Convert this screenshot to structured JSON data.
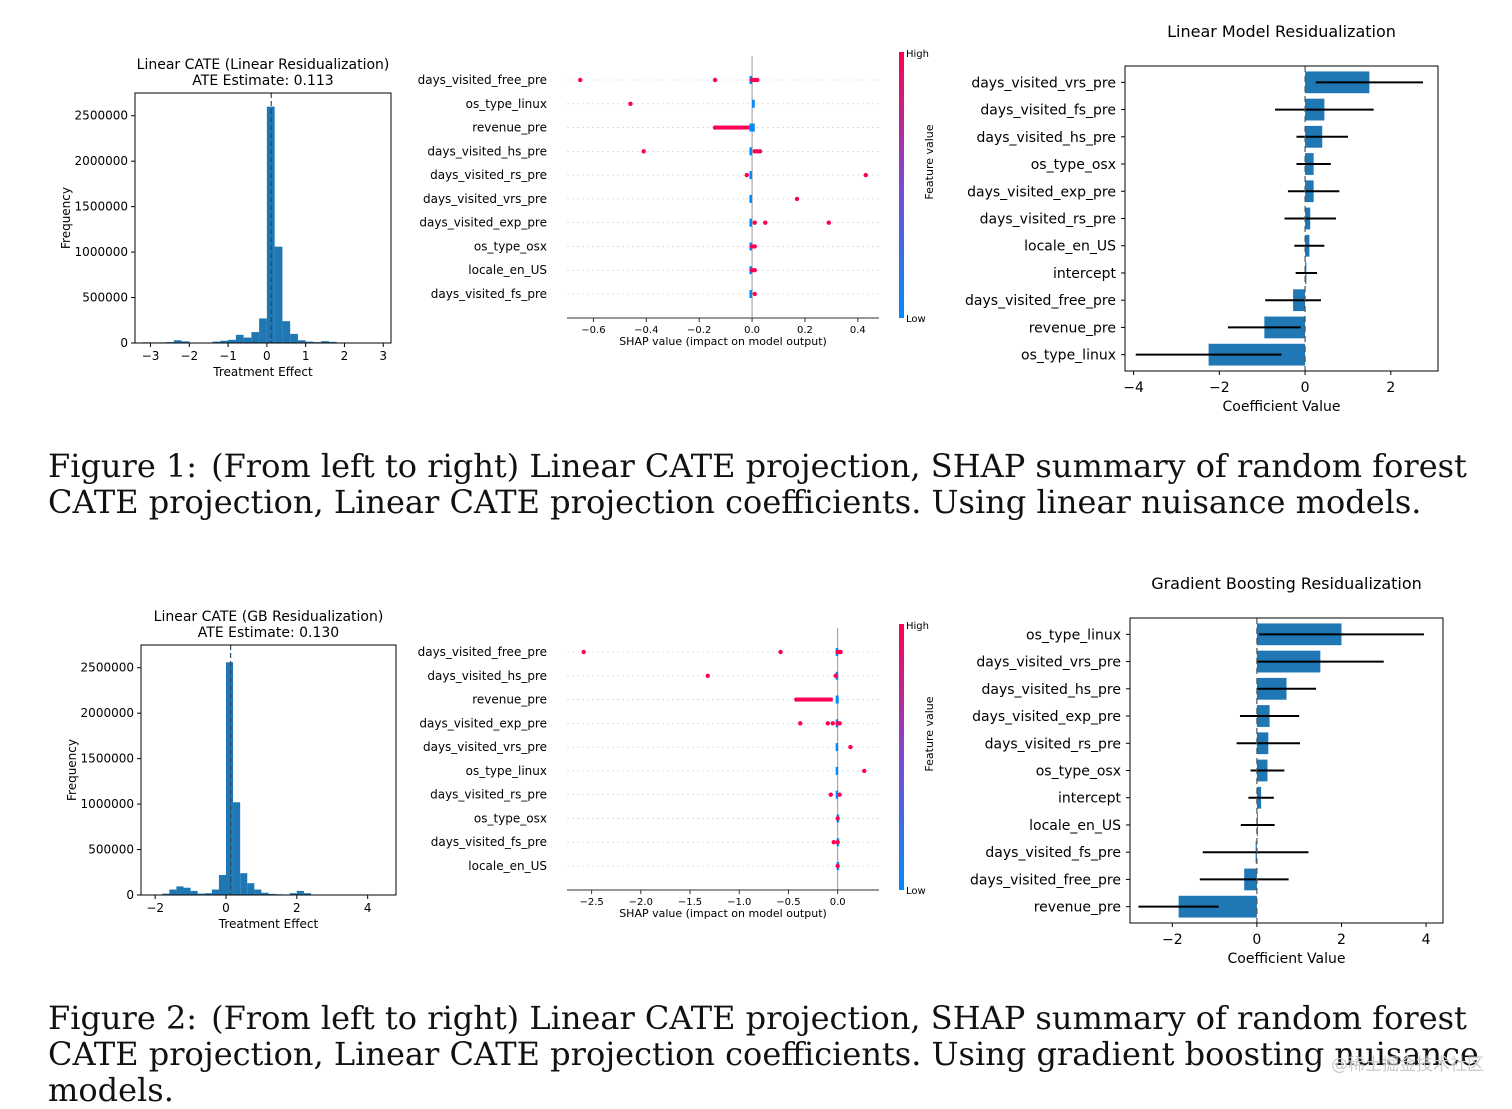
{
  "chart_data": [
    {
      "type": "bar",
      "kind": "histogram",
      "title": "Linear CATE (Linear Residualization)",
      "subtitle": "ATE Estimate: 0.113",
      "xlabel": "Treatment Effect",
      "ylabel": "Frequency",
      "xlim": [
        -3.4,
        3.2
      ],
      "ylim": [
        0,
        2750000
      ],
      "xticks": [
        -3,
        -2,
        -1,
        0,
        1,
        2,
        3
      ],
      "xtick_labels": [
        "−3",
        "−2",
        "−1",
        "0",
        "1",
        "2",
        "3"
      ],
      "yticks": [
        0,
        500000,
        1000000,
        1500000,
        2000000,
        2500000
      ],
      "ytick_labels": [
        "0",
        "500000",
        "1000000",
        "1500000",
        "2000000",
        "2500000"
      ],
      "bin_width": 0.2,
      "bins": [
        {
          "x": -3.3,
          "y": 5000
        },
        {
          "x": -3.1,
          "y": 8000
        },
        {
          "x": -2.9,
          "y": 6000
        },
        {
          "x": -2.7,
          "y": 7000
        },
        {
          "x": -2.5,
          "y": 10000
        },
        {
          "x": -2.3,
          "y": 30000
        },
        {
          "x": -2.1,
          "y": 18000
        },
        {
          "x": -1.9,
          "y": 5000
        },
        {
          "x": -1.7,
          "y": 4000
        },
        {
          "x": -1.5,
          "y": 5000
        },
        {
          "x": -1.3,
          "y": 15000
        },
        {
          "x": -1.1,
          "y": 25000
        },
        {
          "x": -0.9,
          "y": 35000
        },
        {
          "x": -0.7,
          "y": 90000
        },
        {
          "x": -0.5,
          "y": 60000
        },
        {
          "x": -0.3,
          "y": 120000
        },
        {
          "x": -0.1,
          "y": 270000
        },
        {
          "x": 0.1,
          "y": 2600000
        },
        {
          "x": 0.3,
          "y": 1060000
        },
        {
          "x": 0.5,
          "y": 240000
        },
        {
          "x": 0.7,
          "y": 100000
        },
        {
          "x": 0.9,
          "y": 30000
        },
        {
          "x": 1.1,
          "y": 15000
        },
        {
          "x": 1.3,
          "y": 10000
        },
        {
          "x": 1.5,
          "y": 20000
        },
        {
          "x": 1.7,
          "y": 12000
        },
        {
          "x": 1.9,
          "y": 5000
        },
        {
          "x": 2.1,
          "y": 3000
        }
      ],
      "mean_line": 0.113
    },
    {
      "type": "scatter",
      "kind": "shap_summary",
      "xlabel": "SHAP value (impact on model output)",
      "xlim": [
        -0.7,
        0.48
      ],
      "xticks": [
        -0.6,
        -0.4,
        -0.2,
        0.0,
        0.2,
        0.4
      ],
      "xtick_labels": [
        "−0.6",
        "−0.4",
        "−0.2",
        "0.0",
        "0.2",
        "0.4"
      ],
      "colorbar": {
        "label": "Feature value",
        "high": "High",
        "low": "Low"
      },
      "features": [
        {
          "name": "days_visited_free_pre",
          "low_range": [
            -0.01,
            0.0
          ],
          "high_points": [
            -0.65,
            -0.14,
            0.0,
            0.01,
            0.02
          ]
        },
        {
          "name": "os_type_linux",
          "low_range": [
            0.0,
            0.01
          ],
          "high_points": [
            -0.46
          ]
        },
        {
          "name": "revenue_pre",
          "low_range": [
            -0.01,
            0.01
          ],
          "high_points": [
            -0.14
          ],
          "high_range": [
            -0.14,
            -0.01
          ]
        },
        {
          "name": "days_visited_hs_pre",
          "low_range": [
            -0.01,
            0.0
          ],
          "high_points": [
            -0.41,
            0.01,
            0.02,
            0.03
          ]
        },
        {
          "name": "days_visited_rs_pre",
          "low_range": [
            -0.01,
            0.0
          ],
          "high_points": [
            -0.02,
            0.43
          ]
        },
        {
          "name": "days_visited_vrs_pre",
          "low_range": [
            -0.01,
            0.0
          ],
          "high_points": [
            0.17
          ]
        },
        {
          "name": "days_visited_exp_pre",
          "low_range": [
            -0.01,
            0.0
          ],
          "high_points": [
            0.01,
            0.05,
            0.29
          ]
        },
        {
          "name": "os_type_osx",
          "low_range": [
            -0.01,
            0.0
          ],
          "high_points": [
            0.0,
            0.01
          ]
        },
        {
          "name": "locale_en_US",
          "low_range": [
            -0.01,
            0.0
          ],
          "high_points": [
            0.0,
            0.01
          ]
        },
        {
          "name": "days_visited_fs_pre",
          "low_range": [
            -0.01,
            0.0
          ],
          "high_points": [
            0.01
          ]
        }
      ]
    },
    {
      "type": "bar",
      "kind": "horizontal_coefficients",
      "title": "Linear Model Residualization",
      "xlabel": "Coefficient Value",
      "xlim": [
        -4.2,
        3.1
      ],
      "xticks": [
        -4,
        -2,
        0,
        2
      ],
      "xtick_labels": [
        "−4",
        "−2",
        "0",
        "2"
      ],
      "categories": [
        "days_visited_vrs_pre",
        "days_visited_fs_pre",
        "days_visited_hs_pre",
        "os_type_osx",
        "days_visited_exp_pre",
        "days_visited_rs_pre",
        "locale_en_US",
        "intercept",
        "days_visited_free_pre",
        "revenue_pre",
        "os_type_linux"
      ],
      "values": [
        1.5,
        0.45,
        0.4,
        0.2,
        0.2,
        0.12,
        0.1,
        0.03,
        -0.28,
        -0.95,
        -2.25
      ],
      "errors": [
        1.25,
        1.15,
        0.6,
        0.4,
        0.6,
        0.6,
        0.35,
        0.25,
        0.65,
        0.85,
        1.7
      ]
    },
    {
      "type": "bar",
      "kind": "histogram",
      "title": "Linear CATE (GB Residualization)",
      "subtitle": "ATE Estimate: 0.130",
      "xlabel": "Treatment Effect",
      "ylabel": "Frequency",
      "xlim": [
        -2.4,
        4.8
      ],
      "ylim": [
        0,
        2750000
      ],
      "xticks": [
        -2,
        0,
        2,
        4
      ],
      "xtick_labels": [
        "−2",
        "0",
        "2",
        "4"
      ],
      "yticks": [
        0,
        500000,
        1000000,
        1500000,
        2000000,
        2500000
      ],
      "ytick_labels": [
        "0",
        "500000",
        "1000000",
        "1500000",
        "2000000",
        "2500000"
      ],
      "bin_width": 0.2,
      "bins": [
        {
          "x": -1.9,
          "y": 5000
        },
        {
          "x": -1.7,
          "y": 15000
        },
        {
          "x": -1.5,
          "y": 60000
        },
        {
          "x": -1.3,
          "y": 95000
        },
        {
          "x": -1.1,
          "y": 80000
        },
        {
          "x": -0.9,
          "y": 45000
        },
        {
          "x": -0.7,
          "y": 15000
        },
        {
          "x": -0.5,
          "y": 20000
        },
        {
          "x": -0.3,
          "y": 60000
        },
        {
          "x": -0.1,
          "y": 220000
        },
        {
          "x": 0.1,
          "y": 2560000
        },
        {
          "x": 0.3,
          "y": 1020000
        },
        {
          "x": 0.5,
          "y": 240000
        },
        {
          "x": 0.7,
          "y": 130000
        },
        {
          "x": 0.9,
          "y": 60000
        },
        {
          "x": 1.1,
          "y": 25000
        },
        {
          "x": 1.3,
          "y": 12000
        },
        {
          "x": 1.5,
          "y": 8000
        },
        {
          "x": 1.7,
          "y": 6000
        },
        {
          "x": 1.9,
          "y": 20000
        },
        {
          "x": 2.1,
          "y": 45000
        },
        {
          "x": 2.3,
          "y": 20000
        },
        {
          "x": 2.5,
          "y": 5000
        }
      ],
      "mean_line": 0.13
    },
    {
      "type": "scatter",
      "kind": "shap_summary",
      "xlabel": "SHAP value (impact on model output)",
      "xlim": [
        -2.75,
        0.42
      ],
      "xticks": [
        -2.5,
        -2.0,
        -1.5,
        -1.0,
        -0.5,
        0.0
      ],
      "xtick_labels": [
        "−2.5",
        "−2.0",
        "−1.5",
        "−1.0",
        "−0.5",
        "0.0"
      ],
      "colorbar": {
        "label": "Feature value",
        "high": "High",
        "low": "Low"
      },
      "features": [
        {
          "name": "days_visited_free_pre",
          "low_range": [
            -0.02,
            0.0
          ],
          "high_points": [
            -2.58,
            -0.58,
            0.0,
            0.02,
            0.03
          ]
        },
        {
          "name": "days_visited_hs_pre",
          "low_range": [
            -0.02,
            0.0
          ],
          "high_points": [
            -1.32,
            -0.02
          ]
        },
        {
          "name": "revenue_pre",
          "low_range": [
            -0.02,
            0.01
          ],
          "high_points": [
            -0.42
          ],
          "high_range": [
            -0.42,
            -0.05
          ]
        },
        {
          "name": "days_visited_exp_pre",
          "low_range": [
            -0.02,
            0.0
          ],
          "high_points": [
            -0.38,
            -0.1,
            -0.05,
            0.0,
            0.02
          ]
        },
        {
          "name": "days_visited_vrs_pre",
          "low_range": [
            -0.02,
            0.0
          ],
          "high_points": [
            0.13
          ]
        },
        {
          "name": "os_type_linux",
          "low_range": [
            -0.02,
            0.0
          ],
          "high_points": [
            0.27
          ]
        },
        {
          "name": "days_visited_rs_pre",
          "low_range": [
            -0.02,
            0.0
          ],
          "high_points": [
            -0.07,
            0.02
          ]
        },
        {
          "name": "os_type_osx",
          "low_range": [
            -0.01,
            0.0
          ],
          "high_points": [
            0.0
          ]
        },
        {
          "name": "days_visited_fs_pre",
          "low_range": [
            -0.01,
            0.0
          ],
          "high_points": [
            -0.04,
            0.0
          ]
        },
        {
          "name": "locale_en_US",
          "low_range": [
            -0.01,
            0.0
          ],
          "high_points": [
            0.0
          ]
        }
      ]
    },
    {
      "type": "bar",
      "kind": "horizontal_coefficients",
      "title": "Gradient Boosting Residualization",
      "xlabel": "Coefficient Value",
      "xlim": [
        -3.0,
        4.4
      ],
      "xticks": [
        -2,
        0,
        2,
        4
      ],
      "xtick_labels": [
        "−2",
        "0",
        "2",
        "4"
      ],
      "categories": [
        "os_type_linux",
        "days_visited_vrs_pre",
        "days_visited_hs_pre",
        "days_visited_exp_pre",
        "days_visited_rs_pre",
        "os_type_osx",
        "intercept",
        "locale_en_US",
        "days_visited_fs_pre",
        "days_visited_free_pre",
        "revenue_pre"
      ],
      "values": [
        2.0,
        1.5,
        0.7,
        0.3,
        0.27,
        0.25,
        0.1,
        0.02,
        -0.03,
        -0.3,
        -1.85
      ],
      "errors": [
        1.95,
        1.5,
        0.7,
        0.7,
        0.75,
        0.4,
        0.3,
        0.4,
        1.25,
        1.05,
        0.95
      ]
    }
  ],
  "colors": {
    "bar": "#1f77b4",
    "high": "#ff0052",
    "low": "#008bfb",
    "axis": "#000000",
    "mean_line": "#2e4a62"
  },
  "captions": [
    {
      "label": "Figure 1:",
      "text": "(From left to right) Linear CATE projection, SHAP summary of random forest CATE projection, Linear CATE projection coefficients. Using linear nuisance models."
    },
    {
      "label": "Figure 2:",
      "text": "(From left to right) Linear CATE projection, SHAP summary of random forest CATE projection, Linear CATE projection coefficients. Using gradient boosting nuisance models."
    }
  ],
  "watermark": "@稀土掘金技术社区"
}
